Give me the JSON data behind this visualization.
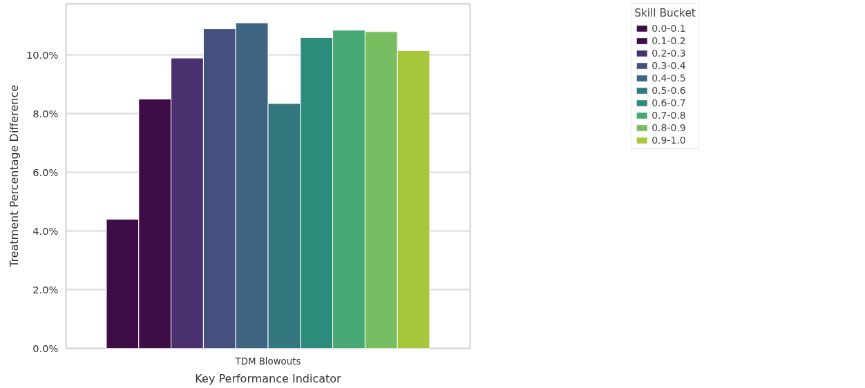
{
  "chart_data": {
    "type": "bar",
    "xlabel": "Key Performance Indicator",
    "ylabel": "Treatment Percentage Difference",
    "legend_title": "Skill Bucket",
    "categories": [
      "TDM Blowouts"
    ],
    "series": [
      {
        "name": "0.0-0.1",
        "color": "#3d0b46",
        "values": [
          4.4
        ]
      },
      {
        "name": "0.1-0.2",
        "color": "#3e0c46",
        "values": [
          8.5
        ]
      },
      {
        "name": "0.2-0.3",
        "color": "#4a306e",
        "values": [
          9.9
        ]
      },
      {
        "name": "0.3-0.4",
        "color": "#46507e",
        "values": [
          10.9
        ]
      },
      {
        "name": "0.4-0.5",
        "color": "#3d6582",
        "values": [
          11.1
        ]
      },
      {
        "name": "0.5-0.6",
        "color": "#32767e",
        "values": [
          8.35
        ]
      },
      {
        "name": "0.6-0.7",
        "color": "#2b8c7b",
        "values": [
          10.6
        ]
      },
      {
        "name": "0.7-0.8",
        "color": "#47a874",
        "values": [
          10.85
        ]
      },
      {
        "name": "0.8-0.9",
        "color": "#77bd61",
        "values": [
          10.8
        ]
      },
      {
        "name": "0.9-1.0",
        "color": "#a8c63c",
        "values": [
          10.15
        ]
      }
    ],
    "ylim": [
      0,
      11.75
    ],
    "yticks": [
      {
        "value": 0,
        "label": "0.0%"
      },
      {
        "value": 2,
        "label": "2.0%"
      },
      {
        "value": 4,
        "label": "4.0%"
      },
      {
        "value": 6,
        "label": "6.0%"
      },
      {
        "value": 8,
        "label": "8.0%"
      },
      {
        "value": 10,
        "label": "10.0%"
      }
    ],
    "grid": "y",
    "legend": "top right"
  }
}
